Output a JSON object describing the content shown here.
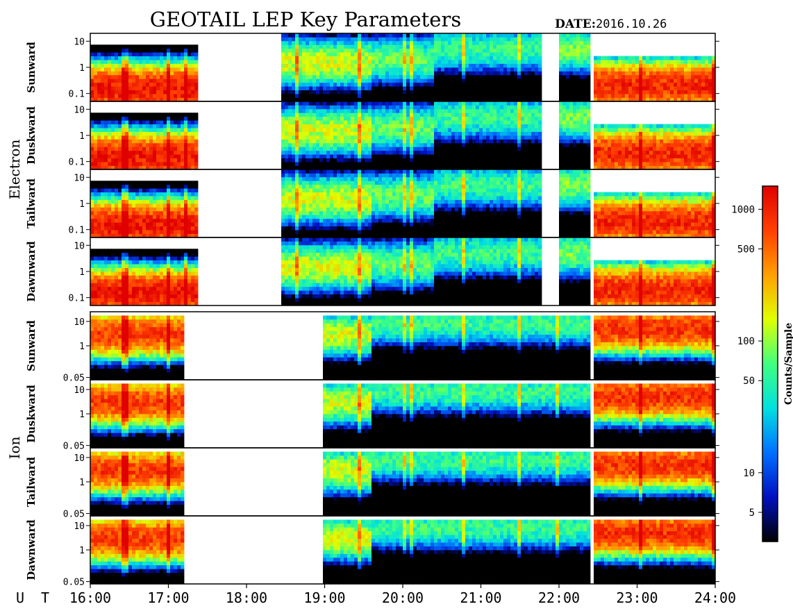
{
  "title": "GEOTAIL LEP Key Parameters",
  "date_label": "DATE:",
  "date_value": "2016.10.26",
  "chart_data": {
    "type": "heatmap",
    "x_axis": {
      "label": "U T",
      "range_hours": [
        16,
        24
      ],
      "tick_labels": [
        "16:00",
        "17:00",
        "18:00",
        "19:00",
        "20:00",
        "21:00",
        "22:00",
        "23:00",
        "24:00"
      ]
    },
    "colorbar": {
      "label": "Counts/Sample",
      "scale": "log",
      "range": [
        3,
        1500
      ],
      "tick_labels": [
        "1000",
        "500",
        "100",
        "50",
        "10",
        "5"
      ],
      "tick_values": [
        1000,
        500,
        100,
        50,
        10,
        5
      ],
      "colors": [
        "#000000",
        "#0010c0",
        "#0070ff",
        "#00e0e0",
        "#40ff80",
        "#e0ff00",
        "#ffa000",
        "#ff4000",
        "#e00000"
      ]
    },
    "groups": [
      {
        "name": "Electron",
        "y_scale": "log",
        "y_range": [
          0.05,
          20
        ],
        "y_tick_labels": [
          "10",
          "1",
          "0.1"
        ],
        "y_tick_values": [
          10,
          1,
          0.1
        ],
        "panels": [
          "Sunward",
          "Duskward",
          "Tailward",
          "Dawnward"
        ]
      },
      {
        "name": "Ion",
        "y_scale": "log",
        "y_range": [
          0.04,
          25
        ],
        "y_tick_labels": [
          "10",
          "1",
          "0.05"
        ],
        "y_tick_values": [
          10,
          1,
          0.05
        ],
        "panels": [
          "Sunward",
          "Duskward",
          "Tailward",
          "Dawnward"
        ]
      }
    ],
    "data_gaps": {
      "electron_hours": [
        [
          17.4,
          18.45
        ]
      ],
      "ion_hours": [
        [
          17.2,
          18.45
        ],
        [
          18.5,
          19.0
        ]
      ]
    },
    "spectral_summary": [
      {
        "species": "electron",
        "hours": [
          16.0,
          17.4
        ],
        "peak_energy": 0.15,
        "peak_counts": 1200,
        "upper_cutoff": 8
      },
      {
        "species": "electron",
        "hours": [
          18.45,
          19.6
        ],
        "peak_energy": 1.5,
        "peak_counts": 150,
        "upper_cutoff": 20
      },
      {
        "species": "electron",
        "hours": [
          19.6,
          20.4
        ],
        "peak_energy": 2.0,
        "peak_counts": 80,
        "upper_cutoff": 20
      },
      {
        "species": "electron",
        "hours": [
          20.4,
          21.8
        ],
        "peak_energy": 5.0,
        "peak_counts": 60,
        "upper_cutoff": 20
      },
      {
        "species": "electron",
        "hours": [
          22.0,
          22.4
        ],
        "peak_energy": 5.0,
        "peak_counts": 90,
        "upper_cutoff": 20
      },
      {
        "species": "electron",
        "hours": [
          22.45,
          24.0
        ],
        "peak_energy": 0.2,
        "peak_counts": 1000,
        "upper_cutoff": 3
      },
      {
        "species": "ion",
        "hours": [
          16.0,
          17.2
        ],
        "peak_energy": 3.0,
        "peak_counts": 800,
        "upper_cutoff": 20
      },
      {
        "species": "ion",
        "hours": [
          19.0,
          19.6
        ],
        "peak_energy": 3.0,
        "peak_counts": 150,
        "upper_cutoff": 20
      },
      {
        "species": "ion",
        "hours": [
          19.6,
          22.4
        ],
        "peak_energy": 8.0,
        "peak_counts": 60,
        "upper_cutoff": 20
      },
      {
        "species": "ion",
        "hours": [
          22.45,
          24.0
        ],
        "peak_energy": 5.0,
        "peak_counts": 900,
        "upper_cutoff": 20
      }
    ]
  }
}
